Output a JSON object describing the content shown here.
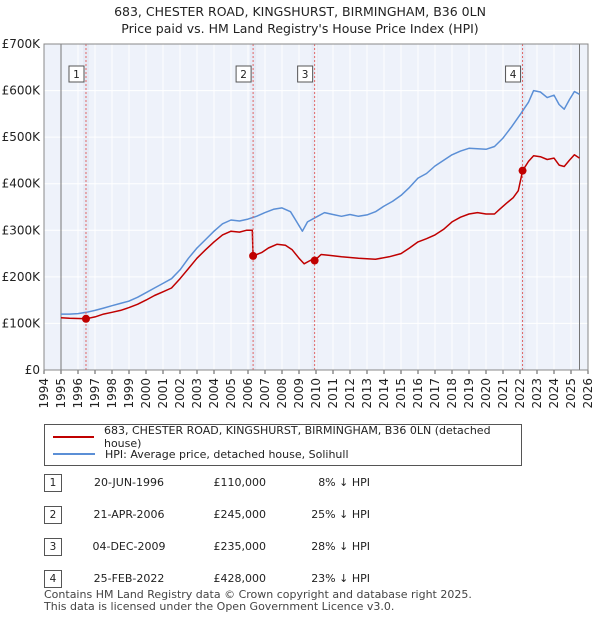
{
  "titles": {
    "line1": "683, CHESTER ROAD, KINGSHURST, BIRMINGHAM, B36 0LN",
    "line2": "Price paid vs. HM Land Registry's House Price Index (HPI)"
  },
  "chart_data": {
    "type": "line",
    "x_min": 1994,
    "x_max": 2026,
    "ylim": [
      0,
      700000
    ],
    "y_ticks": [
      {
        "value": 0,
        "label": "£0"
      },
      {
        "value": 100000,
        "label": "£100K"
      },
      {
        "value": 200000,
        "label": "£200K"
      },
      {
        "value": 300000,
        "label": "£300K"
      },
      {
        "value": 400000,
        "label": "£400K"
      },
      {
        "value": 500000,
        "label": "£500K"
      },
      {
        "value": 600000,
        "label": "£600K"
      },
      {
        "value": 700000,
        "label": "£700K"
      }
    ],
    "x_ticks": [
      "1994",
      "1995",
      "1996",
      "1997",
      "1998",
      "1999",
      "2000",
      "2001",
      "2002",
      "2003",
      "2004",
      "2005",
      "2006",
      "2007",
      "2008",
      "2009",
      "2010",
      "2011",
      "2012",
      "2013",
      "2014",
      "2015",
      "2016",
      "2017",
      "2018",
      "2019",
      "2020",
      "2021",
      "2022",
      "2023",
      "2024",
      "2025",
      "2026"
    ],
    "data_start": 1995.0,
    "data_end": 2025.5,
    "series": [
      {
        "name": "683, CHESTER ROAD, KINGSHURST, BIRMINGHAM, B36 0LN (detached house)",
        "color": "#c00000",
        "points": [
          [
            1995.0,
            112000
          ],
          [
            1995.5,
            111000
          ],
          [
            1996.0,
            110500
          ],
          [
            1996.47,
            110000
          ],
          [
            1997.0,
            114000
          ],
          [
            1997.5,
            120000
          ],
          [
            1998.0,
            124000
          ],
          [
            1998.5,
            128000
          ],
          [
            1999.0,
            134000
          ],
          [
            1999.5,
            141000
          ],
          [
            2000.0,
            150000
          ],
          [
            2000.5,
            160000
          ],
          [
            2001.0,
            168000
          ],
          [
            2001.5,
            176000
          ],
          [
            2002.0,
            196000
          ],
          [
            2002.5,
            218000
          ],
          [
            2003.0,
            240000
          ],
          [
            2003.5,
            258000
          ],
          [
            2004.0,
            275000
          ],
          [
            2004.5,
            290000
          ],
          [
            2005.0,
            298000
          ],
          [
            2005.5,
            296000
          ],
          [
            2005.9,
            300000
          ],
          [
            2006.25,
            300000
          ],
          [
            2006.3,
            245000
          ],
          [
            2006.8,
            252000
          ],
          [
            2007.2,
            262000
          ],
          [
            2007.7,
            270000
          ],
          [
            2008.2,
            268000
          ],
          [
            2008.6,
            258000
          ],
          [
            2009.0,
            240000
          ],
          [
            2009.3,
            228000
          ],
          [
            2009.7,
            236000
          ],
          [
            2009.92,
            235000
          ],
          [
            2010.3,
            248000
          ],
          [
            2010.8,
            246000
          ],
          [
            2011.5,
            243000
          ],
          [
            2012.5,
            240000
          ],
          [
            2013.5,
            238000
          ],
          [
            2014.3,
            243000
          ],
          [
            2015.0,
            250000
          ],
          [
            2015.5,
            262000
          ],
          [
            2016.0,
            275000
          ],
          [
            2016.5,
            282000
          ],
          [
            2017.0,
            290000
          ],
          [
            2017.5,
            302000
          ],
          [
            2018.0,
            318000
          ],
          [
            2018.5,
            328000
          ],
          [
            2019.0,
            335000
          ],
          [
            2019.5,
            338000
          ],
          [
            2020.0,
            335000
          ],
          [
            2020.5,
            335000
          ],
          [
            2020.8,
            345000
          ],
          [
            2021.2,
            358000
          ],
          [
            2021.6,
            370000
          ],
          [
            2021.9,
            385000
          ],
          [
            2022.15,
            428000
          ],
          [
            2022.5,
            448000
          ],
          [
            2022.8,
            460000
          ],
          [
            2023.2,
            458000
          ],
          [
            2023.6,
            452000
          ],
          [
            2024.0,
            455000
          ],
          [
            2024.3,
            440000
          ],
          [
            2024.6,
            437000
          ],
          [
            2024.9,
            450000
          ],
          [
            2025.2,
            462000
          ],
          [
            2025.5,
            455000
          ]
        ]
      },
      {
        "name": "HPI: Average price, detached house, Solihull",
        "color": "#5b8fd6",
        "points": [
          [
            1995.0,
            120000
          ],
          [
            1995.5,
            120000
          ],
          [
            1996.0,
            121000
          ],
          [
            1996.5,
            124000
          ],
          [
            1997.0,
            128000
          ],
          [
            1997.5,
            133000
          ],
          [
            1998.0,
            138000
          ],
          [
            1998.5,
            143000
          ],
          [
            1999.0,
            148000
          ],
          [
            1999.5,
            156000
          ],
          [
            2000.0,
            166000
          ],
          [
            2000.5,
            176000
          ],
          [
            2001.0,
            186000
          ],
          [
            2001.5,
            196000
          ],
          [
            2002.0,
            215000
          ],
          [
            2002.5,
            240000
          ],
          [
            2003.0,
            262000
          ],
          [
            2003.5,
            280000
          ],
          [
            2004.0,
            298000
          ],
          [
            2004.5,
            314000
          ],
          [
            2005.0,
            322000
          ],
          [
            2005.5,
            320000
          ],
          [
            2006.0,
            324000
          ],
          [
            2006.5,
            330000
          ],
          [
            2007.0,
            338000
          ],
          [
            2007.5,
            345000
          ],
          [
            2008.0,
            348000
          ],
          [
            2008.5,
            340000
          ],
          [
            2008.8,
            322000
          ],
          [
            2009.2,
            298000
          ],
          [
            2009.5,
            318000
          ],
          [
            2010.0,
            328000
          ],
          [
            2010.5,
            338000
          ],
          [
            2011.0,
            334000
          ],
          [
            2011.5,
            330000
          ],
          [
            2012.0,
            334000
          ],
          [
            2012.5,
            330000
          ],
          [
            2013.0,
            333000
          ],
          [
            2013.5,
            340000
          ],
          [
            2014.0,
            352000
          ],
          [
            2014.5,
            362000
          ],
          [
            2015.0,
            375000
          ],
          [
            2015.5,
            392000
          ],
          [
            2016.0,
            412000
          ],
          [
            2016.5,
            422000
          ],
          [
            2017.0,
            438000
          ],
          [
            2017.5,
            450000
          ],
          [
            2018.0,
            462000
          ],
          [
            2018.5,
            470000
          ],
          [
            2019.0,
            476000
          ],
          [
            2019.5,
            475000
          ],
          [
            2020.0,
            474000
          ],
          [
            2020.5,
            480000
          ],
          [
            2021.0,
            498000
          ],
          [
            2021.5,
            522000
          ],
          [
            2022.0,
            548000
          ],
          [
            2022.5,
            575000
          ],
          [
            2022.8,
            600000
          ],
          [
            2023.2,
            597000
          ],
          [
            2023.6,
            585000
          ],
          [
            2024.0,
            590000
          ],
          [
            2024.3,
            570000
          ],
          [
            2024.6,
            560000
          ],
          [
            2024.9,
            580000
          ],
          [
            2025.2,
            598000
          ],
          [
            2025.5,
            592000
          ]
        ]
      }
    ],
    "sales": [
      {
        "id": "1",
        "date": "20-JUN-1996",
        "price": "£110,000",
        "hpi": "8% ↓ HPI",
        "x": 1996.47,
        "y": 110000
      },
      {
        "id": "2",
        "date": "21-APR-2006",
        "price": "£245,000",
        "hpi": "25% ↓ HPI",
        "x": 2006.3,
        "y": 245000
      },
      {
        "id": "3",
        "date": "04-DEC-2009",
        "price": "£235,000",
        "hpi": "28% ↓ HPI",
        "x": 2009.92,
        "y": 235000
      },
      {
        "id": "4",
        "date": "25-FEB-2022",
        "price": "£428,000",
        "hpi": "23% ↓ HPI",
        "x": 2022.15,
        "y": 428000
      }
    ],
    "colors": {
      "price_line": "#c00000",
      "hpi_line": "#5b8fd6",
      "plot_bg": "#eef2fa",
      "sale_band": "#e4e9f4",
      "grid": "#ffffff",
      "marker_line": "#e06666"
    }
  },
  "legend": {
    "price_label": "683, CHESTER ROAD, KINGSHURST, BIRMINGHAM, B36 0LN (detached house)",
    "hpi_label": "HPI: Average price, detached house, Solihull"
  },
  "footer": {
    "line1": "Contains HM Land Registry data © Crown copyright and database right 2025.",
    "line2": "This data is licensed under the Open Government Licence v3.0."
  }
}
